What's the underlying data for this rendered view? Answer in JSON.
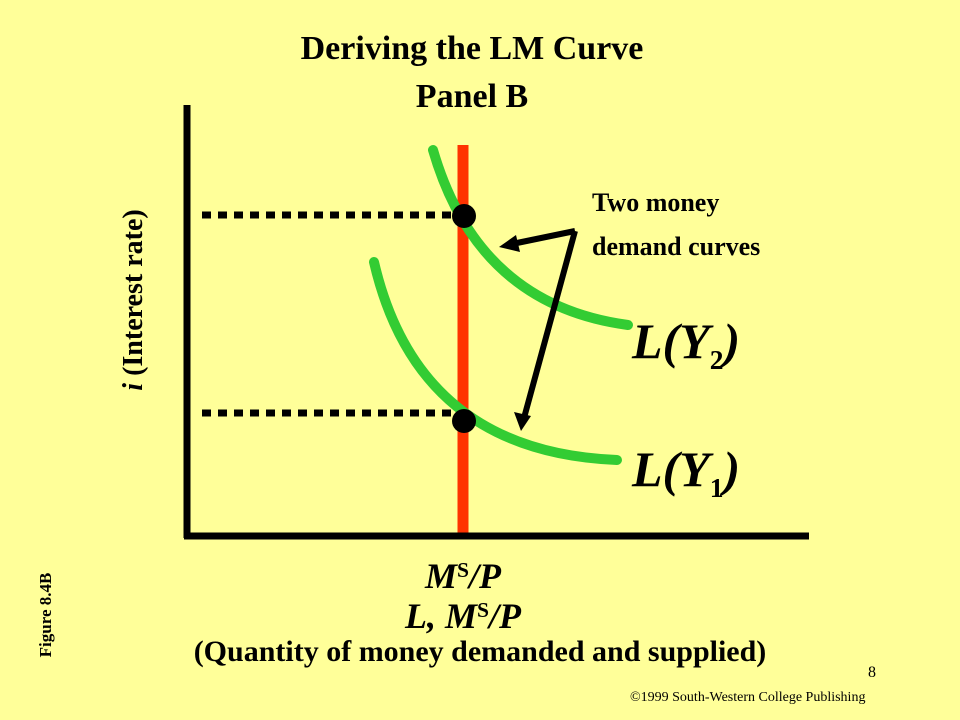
{
  "title": {
    "line1": "Deriving the LM Curve",
    "line2": "Panel B"
  },
  "axes": {
    "y_label_var": "i",
    "y_label_text": " (Interest  rate)",
    "x_tick_label_base": "M",
    "x_tick_label_sup": "S",
    "x_tick_label_rest": "/P",
    "x_label_prefix": "L, M",
    "x_label_sup": "S",
    "x_label_rest": "/P",
    "x_axis_title": "(Quantity of money  demanded and supplied)"
  },
  "annotation": {
    "line1": "Two money",
    "line2": "demand curves"
  },
  "curves": {
    "ly2": {
      "L": "L(Y",
      "sub": "2",
      "close": ")"
    },
    "ly1": {
      "L": "L(Y",
      "sub": "1",
      "close": ")"
    }
  },
  "figure_label": "Figure 8.4B",
  "page_number": "8",
  "copyright": "©1999 South-Western College Publishing",
  "colors": {
    "background": "#FFFF99",
    "demand_curve": "#33CC33",
    "supply_line": "#FF3300",
    "axes": "#000000"
  }
}
